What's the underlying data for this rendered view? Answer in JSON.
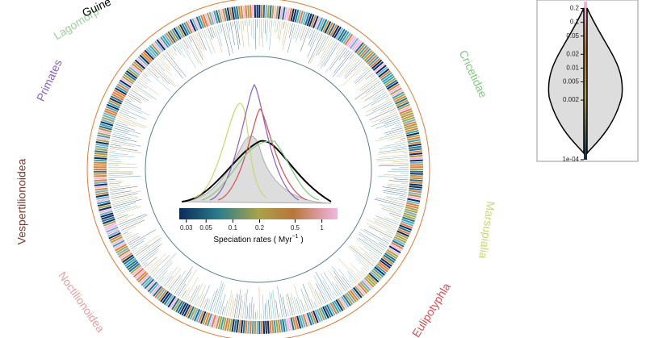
{
  "clades": [
    "Lagomorp",
    "Guine",
    "Primates",
    "Vespertilionoidea",
    "Noctilionoidea",
    "Cricetidae",
    "Marsupialia",
    "Eulipotyphla"
  ],
  "colorbar": {
    "log": true,
    "xlim": [
      0.025,
      1.5
    ],
    "xticks": [
      0.03,
      0.05,
      0.1,
      0.2,
      0.5,
      1
    ],
    "label": [
      "Speciation rates ( Myr",
      "−1",
      " )"
    ]
  },
  "side_panel": {
    "log": true,
    "ylim": [
      0.0001,
      0.25
    ],
    "yticks": [
      0.2,
      0.1,
      0.05,
      0.02,
      0.01,
      0.005,
      0.002,
      {
        "value": 0.0001,
        "label": "1e-04"
      }
    ]
  }
}
